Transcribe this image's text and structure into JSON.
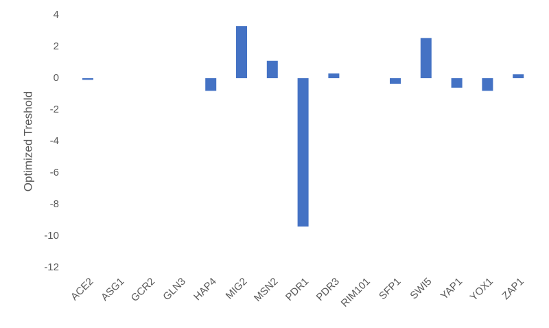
{
  "chart_data": {
    "type": "bar",
    "y_label": "Optimized Treshold",
    "categories": [
      "ACE2",
      "ASG1",
      "GCR2",
      "GLN3",
      "HAP4",
      "MIG2",
      "MSN2",
      "PDR1",
      "PDR3",
      "RIM101",
      "SFP1",
      "SWI5",
      "YAP1",
      "YOX1",
      "ZAP1"
    ],
    "values": [
      -0.1,
      0,
      0,
      0,
      -0.8,
      3.3,
      1.1,
      -9.4,
      0.3,
      0,
      -0.35,
      2.55,
      -0.6,
      -0.8,
      0.25
    ],
    "color": "#4472c4",
    "ylim": [
      -12,
      4
    ],
    "yticks": [
      -12,
      -10,
      -8,
      -6,
      -4,
      -2,
      0,
      2,
      4
    ],
    "grid": false
  }
}
